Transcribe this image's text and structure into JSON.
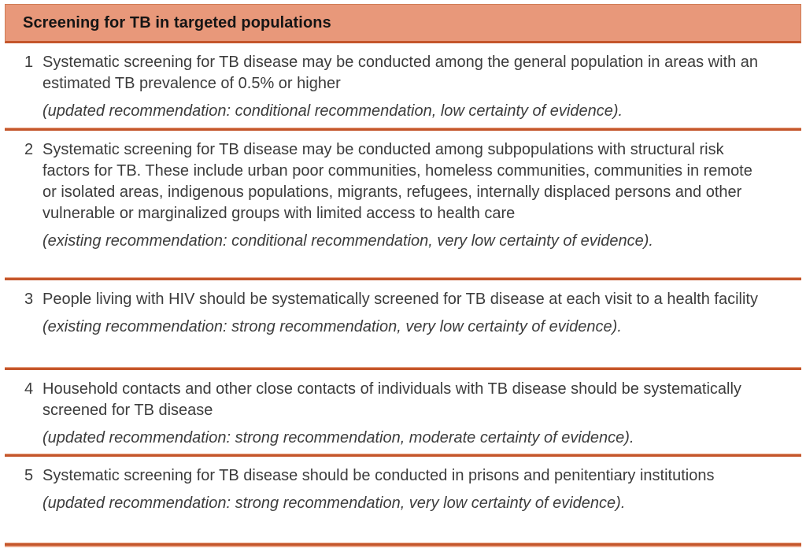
{
  "table": {
    "title": "Screening for TB in targeted populations",
    "rows": [
      {
        "number": "1",
        "text": "Systematic screening for TB disease may be conducted among the general population in areas with an estimated TB prevalence of 0.5% or higher",
        "note": "(updated recommendation: conditional recommendation, low certainty of evidence)."
      },
      {
        "number": "2",
        "text": "Systematic screening for TB disease may be conducted among subpopulations with structural risk factors for TB. These include urban poor communities, homeless communities, communities in remote or isolated areas, indigenous populations, migrants, refugees, internally displaced persons and other vulnerable or marginalized groups with limited access to health care",
        "note": "(existing recommendation: conditional recommendation, very low certainty of evidence)."
      },
      {
        "number": "3",
        "text": "People living with HIV should be systematically screened for TB disease at each visit to a health facility",
        "note": "(existing recommendation: strong recommendation, very low certainty of evidence)."
      },
      {
        "number": "4",
        "text": "Household contacts and other close contacts of individuals with TB disease should be systematically screened for TB disease",
        "note": "(updated recommendation: strong recommendation, moderate certainty of evidence)."
      },
      {
        "number": "5",
        "text": "Systematic screening for TB disease should be conducted in prisons and penitentiary institutions",
        "note": "(updated recommendation: strong recommendation, very low certainty of evidence)."
      }
    ],
    "colors": {
      "header_fill": "#e8987a",
      "header_border": "#cf7c55",
      "divider_dark": "#c4562b",
      "divider_light": "#e8a585",
      "bottom_strip": "#eba98d",
      "body_text": "#3c3c3c",
      "title_text": "#151515"
    }
  }
}
